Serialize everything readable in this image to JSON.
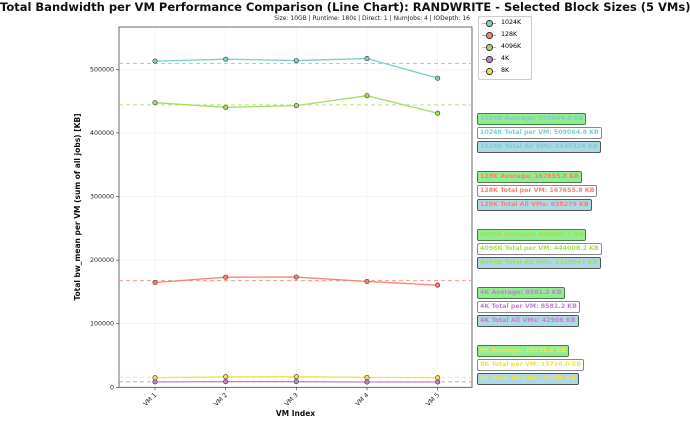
{
  "chart_data": {
    "type": "line",
    "title": "Total Bandwidth per VM Performance Comparison (Line Chart): RANDWRITE - Selected Block Sizes (5 VMs)",
    "subtitle": "Size: 10GB | Runtime: 180s | Direct: 1 | NumJobs: 4 | IODepth: 16",
    "xlabel": "VM Index",
    "ylabel": "Total bw_mean per VM (sum of all jobs) [KB]",
    "categories": [
      "VM 1",
      "VM 2",
      "VM 3",
      "VM 4",
      "VM 5"
    ],
    "ylim": [
      0,
      570000
    ],
    "yticks": [
      0,
      100000,
      200000,
      300000,
      400000,
      500000
    ],
    "grid": true,
    "legend_position": "top-right",
    "series": [
      {
        "name": "1024K",
        "color": "#7dcfc9",
        "values": [
          512800,
          515900,
          513700,
          516900,
          486024
        ],
        "average": 509064.8,
        "annotations": {
          "average": "1024K Average: 509064.8 KB",
          "per_vm": "1024K Total per VM: 509064.8 KB",
          "all": "1024K Total All VMs: 2545324 KB"
        }
      },
      {
        "name": "128K",
        "color": "#fa8072",
        "values": [
          164800,
          173100,
          173300,
          166400,
          160679
        ],
        "average": 167655.8,
        "annotations": {
          "average": "128K Average: 167655.8 KB",
          "per_vm": "128K Total per VM: 167655.8 KB",
          "all": "128K Total All VMs: 838279 KB"
        }
      },
      {
        "name": "4096K",
        "color": "#a8dc5c",
        "values": [
          447500,
          440200,
          442900,
          458500,
          430941
        ],
        "average": 444008.2,
        "annotations": {
          "average": "4096K Average: 444008.2 KB",
          "per_vm": "4096K Total per VM: 444008.2 KB",
          "all": "4096K Total All VMs: 2220041 KB"
        }
      },
      {
        "name": "4K",
        "color": "#c084d0",
        "values": [
          8500,
          8900,
          8900,
          8300,
          8306
        ],
        "average": 8581.2,
        "annotations": {
          "average": "4K Average: 8581.2 KB",
          "per_vm": "4K Total per VM: 8581.2 KB",
          "all": "4K Total All VMs: 42906 KB"
        }
      },
      {
        "name": "8K",
        "color": "#f5e050",
        "values": [
          15000,
          16500,
          16700,
          15500,
          14980
        ],
        "average": 15736.0,
        "annotations": {
          "average": "8K Average: 15736.0 KB",
          "per_vm": "8K Total per VM: 15736.0 KB",
          "all": "8K Total All VMs: 78680 KB"
        }
      }
    ]
  }
}
